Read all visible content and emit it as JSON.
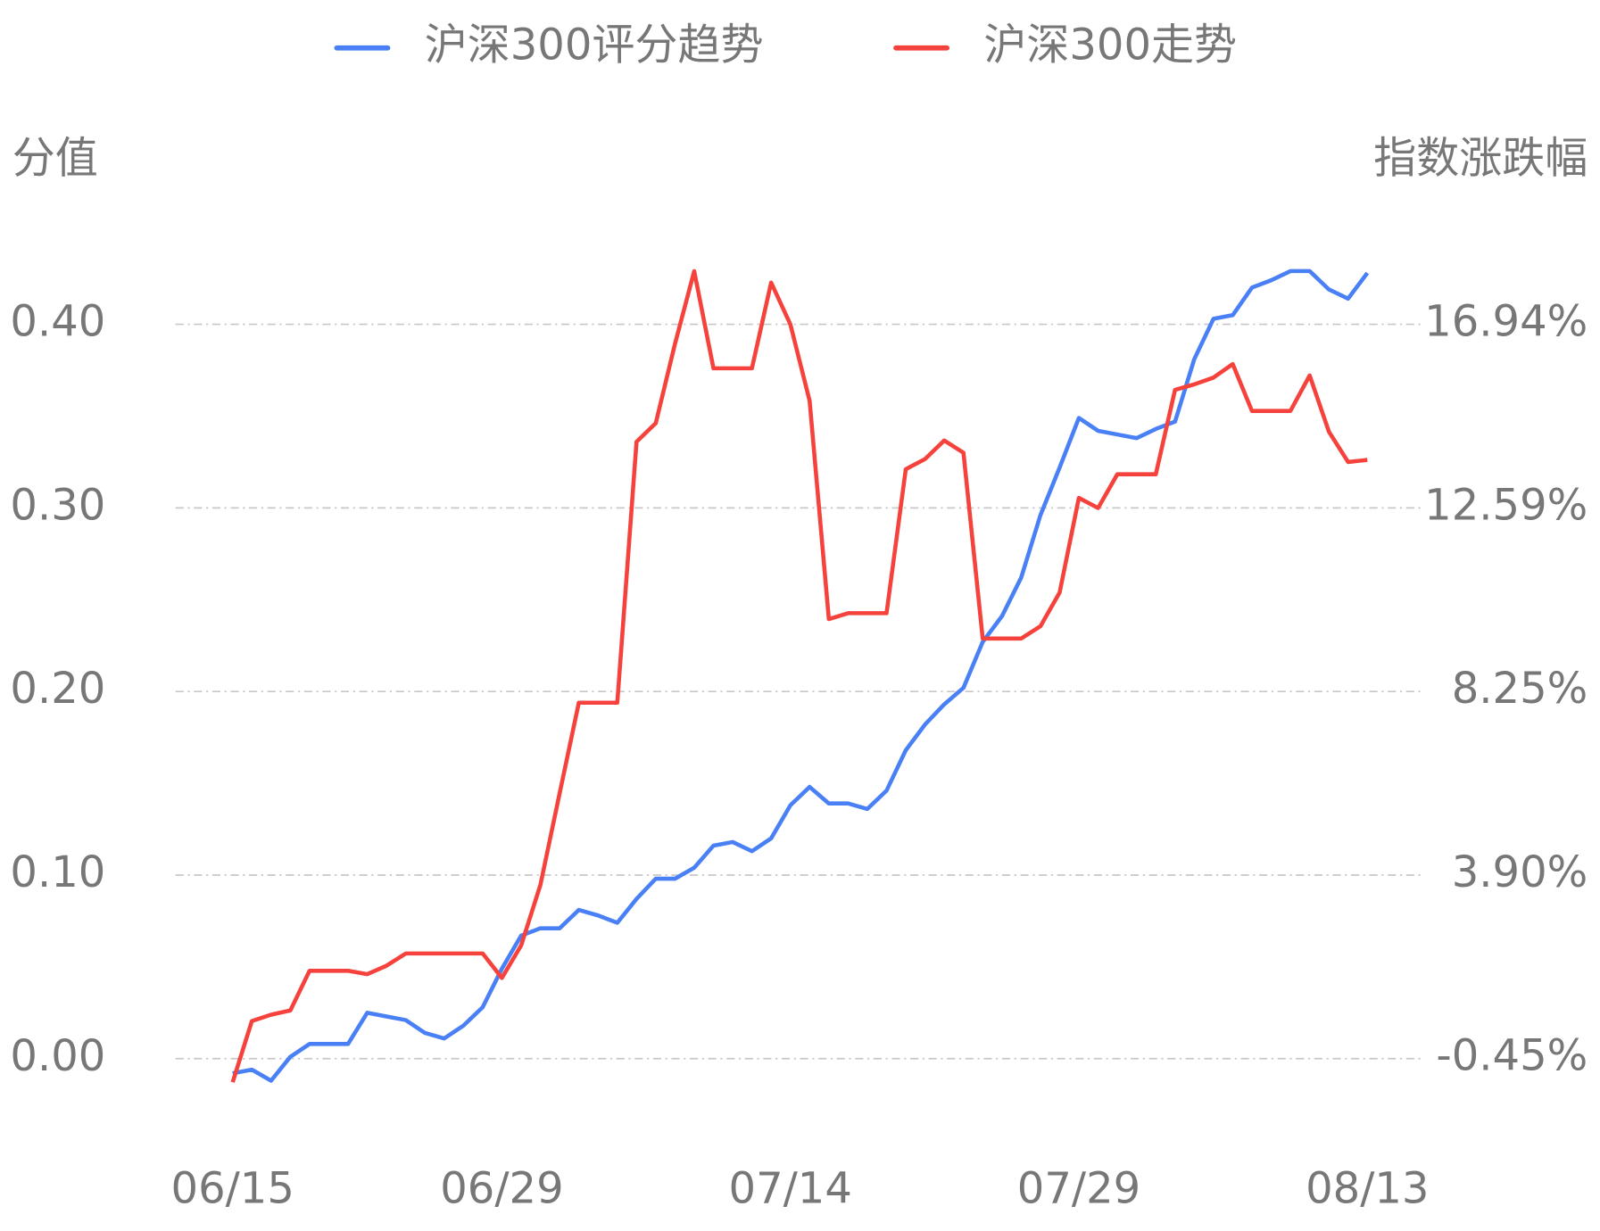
{
  "chart_data": {
    "type": "line",
    "categories": [
      "06/15",
      null,
      null,
      null,
      null,
      null,
      null,
      null,
      null,
      null,
      null,
      null,
      null,
      null,
      "06/29",
      null,
      null,
      null,
      null,
      null,
      null,
      null,
      null,
      null,
      null,
      null,
      null,
      null,
      null,
      "07/14",
      null,
      null,
      null,
      null,
      null,
      null,
      null,
      null,
      null,
      null,
      null,
      null,
      null,
      null,
      "07/29",
      null,
      null,
      null,
      null,
      null,
      null,
      null,
      null,
      null,
      null,
      null,
      null,
      null,
      null,
      "08/13"
    ],
    "ylabel": "分值",
    "y2label": "指数涨跌幅",
    "ylim": [
      -0.04,
      0.48
    ],
    "yticks": [
      {
        "value": 0,
        "label": "0.00"
      },
      {
        "value": 0.1,
        "label": "0.10"
      },
      {
        "value": 0.2,
        "label": "0.20"
      },
      {
        "value": 0.3,
        "label": "0.30"
      },
      {
        "value": 0.4,
        "label": "0.40"
      }
    ],
    "y2lim": [
      -2.19,
      20.42
    ],
    "y2ticks": [
      {
        "value": -0.45,
        "label": "-0.45%"
      },
      {
        "value": 3.9,
        "label": "3.90%"
      },
      {
        "value": 8.25,
        "label": "8.25%"
      },
      {
        "value": 12.59,
        "label": "12.59%"
      },
      {
        "value": 16.94,
        "label": "16.94%"
      }
    ],
    "grid": true,
    "legend": "top",
    "series": [
      {
        "name": "沪深300评分趋势",
        "color": "#4a80f5",
        "values": [
          -0.008,
          -0.006,
          -0.012,
          0.001,
          0.008,
          0.008,
          0.008,
          0.025,
          0.023,
          0.021,
          0.014,
          0.011,
          0.018,
          0.028,
          0.049,
          0.067,
          0.071,
          0.071,
          0.081,
          0.078,
          0.074,
          0.087,
          0.098,
          0.098,
          0.104,
          0.116,
          0.118,
          0.113,
          0.12,
          0.138,
          0.148,
          0.139,
          0.139,
          0.136,
          0.146,
          0.168,
          0.182,
          0.193,
          0.202,
          0.227,
          0.241,
          0.262,
          0.296,
          0.322,
          0.349,
          0.342,
          0.34,
          0.338,
          0.343,
          0.347,
          0.381,
          0.403,
          0.405,
          0.42,
          0.424,
          0.429,
          0.429,
          0.419,
          0.414,
          0.428
        ]
      },
      {
        "name": "沪深300走势",
        "color": "#f5423c",
        "axis": "y2",
        "values": [
          -1.01,
          0.44,
          0.59,
          0.69,
          1.63,
          1.63,
          1.63,
          1.55,
          1.75,
          2.04,
          2.04,
          2.04,
          2.04,
          2.04,
          1.46,
          2.23,
          3.66,
          5.83,
          7.98,
          7.98,
          7.98,
          14.16,
          14.6,
          16.48,
          18.2,
          15.9,
          15.9,
          15.9,
          17.93,
          16.94,
          15.13,
          9.96,
          10.1,
          10.1,
          10.1,
          13.51,
          13.75,
          14.19,
          13.9,
          9.5,
          9.5,
          9.5,
          9.79,
          10.59,
          12.83,
          12.59,
          13.39,
          13.39,
          13.39,
          15.39,
          15.52,
          15.68,
          16.0,
          14.89,
          14.89,
          14.89,
          15.73,
          14.4,
          13.68,
          13.73
        ]
      }
    ]
  }
}
